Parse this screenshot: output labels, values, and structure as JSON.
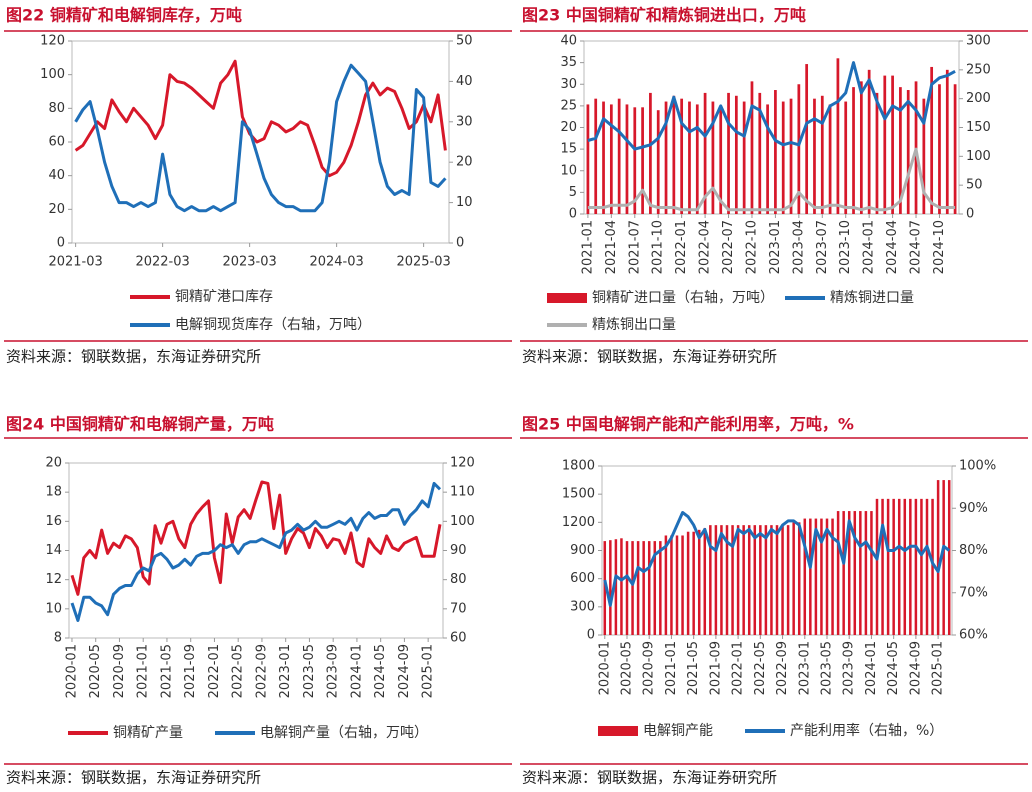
{
  "chart_data": [
    {
      "type": "combo",
      "title": "图22  铜精矿和电解铜库存，万吨",
      "source": "资料来源：钢联数据，东海证券研究所",
      "categories": [
        "2021-03",
        null,
        null,
        null,
        null,
        null,
        null,
        null,
        null,
        null,
        null,
        null,
        "2022-03",
        null,
        null,
        null,
        null,
        null,
        null,
        null,
        null,
        null,
        null,
        null,
        "2023-03",
        null,
        null,
        null,
        null,
        null,
        null,
        null,
        null,
        null,
        null,
        null,
        "2024-03",
        null,
        null,
        null,
        null,
        null,
        null,
        null,
        null,
        null,
        null,
        null,
        "2025-03",
        null,
        null,
        null
      ],
      "ylim": [
        0,
        120
      ],
      "yticks": [
        0,
        20,
        40,
        60,
        80,
        100,
        120
      ],
      "y2lim": [
        0,
        50
      ],
      "y2ticks": [
        0,
        10,
        20,
        30,
        40,
        50
      ],
      "series": [
        {
          "name": "铜精矿港口库存",
          "kind": "line",
          "color": "#d7182a",
          "values": [
            55,
            58,
            65,
            72,
            68,
            85,
            78,
            72,
            80,
            75,
            70,
            62,
            70,
            100,
            96,
            95,
            92,
            88,
            84,
            80,
            95,
            100,
            108,
            75,
            65,
            60,
            62,
            72,
            70,
            66,
            68,
            72,
            70,
            58,
            45,
            40,
            42,
            48,
            58,
            72,
            88,
            95,
            88,
            92,
            90,
            80,
            68,
            72,
            82,
            72,
            88,
            55
          ]
        },
        {
          "name": "电解铜现货库存（右轴，万吨）",
          "kind": "line",
          "axis": "y2",
          "color": "#1f6fb8",
          "values": [
            30,
            33,
            35,
            28,
            20,
            14,
            10,
            10,
            9,
            10,
            9,
            10,
            22,
            12,
            9,
            8,
            9,
            8,
            8,
            9,
            8,
            9,
            10,
            30,
            28,
            22,
            16,
            12,
            10,
            9,
            9,
            8,
            8,
            8,
            10,
            20,
            35,
            40,
            44,
            42,
            40,
            30,
            20,
            14,
            12,
            13,
            12,
            38,
            36,
            15,
            14,
            16
          ]
        }
      ]
    },
    {
      "type": "combo",
      "title": "图23  中国铜精矿和精炼铜进出口，万吨",
      "source": "资料来源：钢联数据，东海证券研究所",
      "categories": [
        "2021-01",
        null,
        null,
        "2021-04",
        null,
        null,
        "2021-07",
        null,
        null,
        "2021-10",
        null,
        null,
        "2022-01",
        null,
        null,
        "2022-04",
        null,
        null,
        "2022-07",
        null,
        null,
        "2022-10",
        null,
        null,
        "2023-01",
        null,
        null,
        "2023-04",
        null,
        null,
        "2023-07",
        null,
        null,
        "2023-10",
        null,
        null,
        "2024-01",
        null,
        null,
        "2024-04",
        null,
        null,
        "2024-07",
        null,
        null,
        "2024-10",
        null,
        null
      ],
      "ylim": [
        0,
        40
      ],
      "yticks": [
        0,
        5,
        10,
        15,
        20,
        25,
        30,
        35,
        40
      ],
      "y2lim": [
        0,
        300
      ],
      "y2ticks": [
        0,
        50,
        100,
        150,
        200,
        250,
        300
      ],
      "series": [
        {
          "name": "铜精矿进口量（右轴，万吨）",
          "kind": "bar",
          "axis": "y2",
          "color": "#d7182a",
          "values": [
            190,
            200,
            195,
            190,
            200,
            190,
            185,
            185,
            210,
            180,
            195,
            205,
            200,
            195,
            190,
            210,
            195,
            185,
            210,
            205,
            195,
            230,
            210,
            190,
            215,
            195,
            200,
            225,
            260,
            200,
            205,
            190,
            270,
            195,
            220,
            230,
            250,
            210,
            240,
            240,
            220,
            215,
            230,
            200,
            255,
            225,
            250,
            225
          ]
        },
        {
          "name": "精炼铜进口量",
          "kind": "line",
          "color": "#1f6fb8",
          "values": [
            17,
            17.5,
            22,
            20.5,
            19,
            17,
            15,
            15.5,
            16,
            17.5,
            21,
            27,
            21,
            19,
            20,
            18,
            21,
            25,
            21,
            19,
            18,
            25,
            24,
            20,
            17,
            16,
            16.5,
            16,
            21,
            22,
            21,
            25,
            26,
            28,
            35,
            28,
            31,
            26,
            22,
            25,
            24,
            26,
            24,
            21,
            30,
            31.5,
            32,
            33
          ]
        },
        {
          "name": "精炼铜出口量",
          "kind": "line",
          "color": "#b0b0b0",
          "values": [
            1.5,
            1.5,
            1.5,
            2,
            2,
            2,
            3,
            5.5,
            2,
            1.5,
            1.5,
            1.5,
            1,
            1,
            1,
            4,
            6,
            3,
            1,
            1,
            1,
            1,
            1,
            1,
            1,
            1,
            2,
            5,
            3,
            1.5,
            1.5,
            2,
            2,
            1.5,
            1.5,
            1,
            1.5,
            1,
            1,
            1.5,
            3,
            9,
            15,
            5,
            2.5,
            1.5,
            1.5,
            1.5
          ]
        }
      ]
    },
    {
      "type": "combo",
      "title": "图24  中国铜精矿和电解铜产量，万吨",
      "source": "资料来源：钢联数据，东海证券研究所",
      "categories": [
        "2020-01",
        null,
        null,
        null,
        "2020-05",
        null,
        null,
        null,
        "2020-09",
        null,
        null,
        null,
        "2021-01",
        null,
        null,
        null,
        "2021-05",
        null,
        null,
        null,
        "2021-09",
        null,
        null,
        null,
        "2022-01",
        null,
        null,
        null,
        "2022-05",
        null,
        null,
        null,
        "2022-09",
        null,
        null,
        null,
        "2023-01",
        null,
        null,
        null,
        "2023-05",
        null,
        null,
        null,
        "2023-09",
        null,
        null,
        null,
        "2024-01",
        null,
        null,
        null,
        "2024-05",
        null,
        null,
        null,
        "2024-09",
        null,
        null,
        null,
        "2025-01",
        null,
        null
      ],
      "ylim": [
        8,
        20
      ],
      "yticks": [
        8,
        10,
        12,
        14,
        16,
        18,
        20
      ],
      "y2lim": [
        60,
        120
      ],
      "y2ticks": [
        60,
        70,
        80,
        90,
        100,
        110,
        120
      ],
      "series": [
        {
          "name": "铜精矿产量",
          "kind": "line",
          "color": "#d7182a",
          "values": [
            12.3,
            11,
            13.5,
            14,
            13.5,
            15.4,
            13.8,
            14.5,
            14.2,
            15,
            14.8,
            14.2,
            12.2,
            11.7,
            15.7,
            14.5,
            15.8,
            16,
            14.8,
            14.2,
            15.8,
            16.5,
            17,
            17.4,
            13.5,
            11.8,
            16.5,
            14.5,
            16.3,
            16.8,
            16.2,
            17.5,
            18.7,
            18.6,
            15.5,
            17.8,
            13.8,
            14.8,
            15.5,
            15.2,
            14.2,
            15.5,
            15,
            14.2,
            14.8,
            14.7,
            13.8,
            15.2,
            13.2,
            12.9,
            14.8,
            14.2,
            13.8,
            15,
            14.2,
            14,
            14.5,
            14.7,
            14.9,
            13.6,
            13.6,
            13.6,
            15.8
          ]
        },
        {
          "name": "电解铜产量（右轴，万吨）",
          "kind": "line",
          "axis": "y2",
          "color": "#1f6fb8",
          "values": [
            72,
            66,
            74,
            74,
            72,
            71,
            68,
            75,
            77,
            78,
            78,
            82,
            84,
            83,
            88,
            89,
            87,
            84,
            85,
            87,
            85,
            88,
            89,
            89,
            90,
            92,
            91,
            92,
            89,
            92,
            93,
            93,
            94,
            93,
            92,
            91,
            96,
            97,
            99,
            97,
            98,
            100,
            98,
            98,
            99,
            100,
            99,
            101,
            97,
            101,
            103,
            101,
            102,
            102,
            104,
            104,
            99,
            102,
            104,
            107,
            105,
            113,
            111
          ]
        }
      ]
    },
    {
      "type": "combo",
      "title": "图25  中国电解铜产能和产能利用率，万吨，%",
      "source": "资料来源：钢联数据，东海证券研究所",
      "categories": [
        "2020-01",
        null,
        null,
        null,
        "2020-05",
        null,
        null,
        null,
        "2020-09",
        null,
        null,
        null,
        "2021-01",
        null,
        null,
        null,
        "2021-05",
        null,
        null,
        null,
        "2021-09",
        null,
        null,
        null,
        "2022-01",
        null,
        null,
        null,
        "2022-05",
        null,
        null,
        null,
        "2022-09",
        null,
        null,
        null,
        "2023-01",
        null,
        null,
        null,
        "2023-05",
        null,
        null,
        null,
        "2023-09",
        null,
        null,
        null,
        "2024-01",
        null,
        null,
        null,
        "2024-05",
        null,
        null,
        null,
        "2024-09",
        null,
        null,
        null,
        "2025-01",
        null,
        null
      ],
      "ylim": [
        0,
        1800
      ],
      "yticks": [
        0,
        300,
        600,
        900,
        1200,
        1500,
        1800
      ],
      "y2lim": [
        60,
        100
      ],
      "y2ticks": [
        {
          "value": 60,
          "label": "60%"
        },
        {
          "value": 70,
          "label": "70%"
        },
        {
          "value": 80,
          "label": "80%"
        },
        {
          "value": 90,
          "label": "90%"
        },
        {
          "value": 100,
          "label": "100%"
        }
      ],
      "series": [
        {
          "name": "电解铜产能",
          "kind": "bar",
          "color": "#d7182a",
          "values": [
            1000,
            1010,
            1020,
            1030,
            1000,
            1000,
            1000,
            1000,
            1000,
            1000,
            1000,
            1060,
            1060,
            1060,
            1060,
            1100,
            1100,
            1120,
            1140,
            1170,
            1170,
            1170,
            1170,
            1170,
            1170,
            1170,
            1170,
            1170,
            1170,
            1170,
            1170,
            1170,
            1170,
            1170,
            1200,
            1200,
            1240,
            1240,
            1240,
            1240,
            1240,
            1240,
            1320,
            1320,
            1320,
            1320,
            1320,
            1320,
            1320,
            1450,
            1450,
            1450,
            1450,
            1450,
            1450,
            1450,
            1450,
            1450,
            1450,
            1450,
            1650,
            1650,
            1650
          ]
        },
        {
          "name": "产能利用率（右轴，%）",
          "kind": "line",
          "axis": "y2",
          "color": "#1f6fb8",
          "values": [
            73,
            67,
            74,
            73,
            74,
            72,
            76,
            75,
            76,
            79,
            80,
            81,
            83,
            86,
            89,
            88,
            86,
            83,
            85,
            81,
            80,
            84,
            82,
            81,
            85,
            84,
            85,
            83,
            84,
            83,
            85,
            84,
            86,
            87,
            87,
            86,
            81,
            76,
            85,
            82,
            85,
            83,
            82,
            77,
            87,
            83,
            81,
            82,
            80,
            78,
            86,
            80,
            80,
            81,
            80,
            81,
            81,
            79,
            81,
            77,
            75,
            81,
            80
          ]
        }
      ]
    }
  ]
}
